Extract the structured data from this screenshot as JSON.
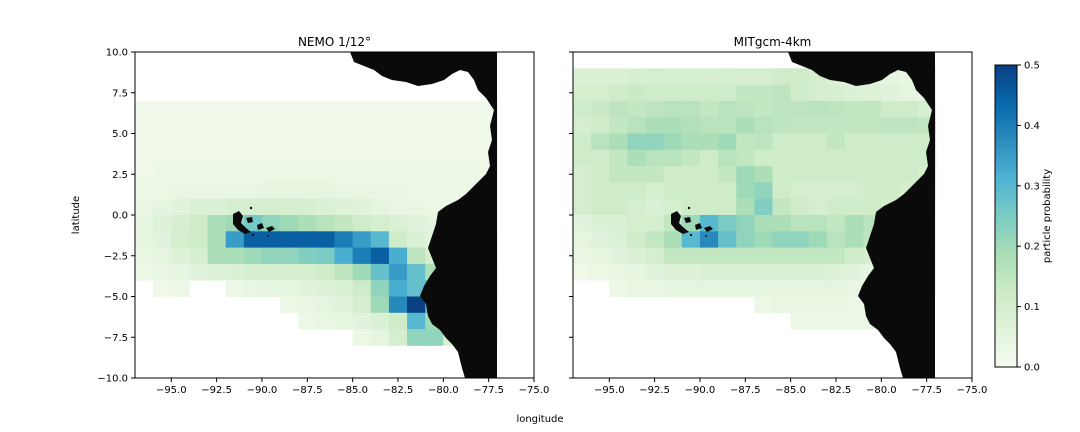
{
  "chart_data": [
    {
      "type": "heatmap",
      "title": "NEMO 1/12°",
      "xlabel": "longitude",
      "ylabel": "latitude",
      "xlim": [
        -97,
        -75
      ],
      "ylim": [
        -10,
        10
      ],
      "xticks": [
        "−95.0",
        "−92.5",
        "−90.0",
        "−87.5",
        "−85.0",
        "−82.5",
        "−80.0",
        "−77.5",
        "−75.0"
      ],
      "yticks": [
        "10.0",
        "7.5",
        "5.0",
        "2.5",
        "0.0",
        "−2.5",
        "−5.0",
        "−7.5",
        "−10.0"
      ],
      "grid_lon_start": -97,
      "grid_lat_start": 7,
      "cell_size": 1,
      "values": [
        [
          0.02,
          0.02,
          0.02,
          0.02,
          0.02,
          0.02,
          0.02,
          0.02,
          0.02,
          0.02,
          0.02,
          0.02,
          0.02,
          0.02,
          0.02,
          0.02,
          0.02,
          0.02,
          0.02,
          0.02
        ],
        [
          0.02,
          0.02,
          0.02,
          0.02,
          0.02,
          0.02,
          0.02,
          0.02,
          0.02,
          0.02,
          0.02,
          0.02,
          0.02,
          0.02,
          0.02,
          0.02,
          0.02,
          0.02,
          0.02,
          0.02
        ],
        [
          0.02,
          0.02,
          0.02,
          0.02,
          0.02,
          0.02,
          0.02,
          0.02,
          0.02,
          0.02,
          0.02,
          0.02,
          0.02,
          0.02,
          0.02,
          0.02,
          0.02,
          0.02,
          0.02,
          0.02
        ],
        [
          0.02,
          0.02,
          0.02,
          0.02,
          0.02,
          0.02,
          0.02,
          0.02,
          0.02,
          0.02,
          0.02,
          0.02,
          0.02,
          0.02,
          0.02,
          0.02,
          0.02,
          0.02,
          0.02,
          0.02
        ],
        [
          0.02,
          0.03,
          0.03,
          0.03,
          0.03,
          0.03,
          0.03,
          0.03,
          0.03,
          0.03,
          0.03,
          0.03,
          0.03,
          0.03,
          0.03,
          0.03,
          0.03,
          0.03,
          0.03,
          0.02
        ],
        [
          0.03,
          0.03,
          0.04,
          0.04,
          0.04,
          0.04,
          0.04,
          0.05,
          0.05,
          0.05,
          0.05,
          0.04,
          0.04,
          0.04,
          0.04,
          0.03,
          0.03,
          0.03,
          0.03,
          0.02
        ],
        [
          0.04,
          0.05,
          0.06,
          0.08,
          0.08,
          0.09,
          0.09,
          0.1,
          0.1,
          0.09,
          0.08,
          0.07,
          0.06,
          0.05,
          0.04,
          0.04,
          0.03,
          0.03,
          0.03,
          0.02
        ],
        [
          0.05,
          0.07,
          0.09,
          0.12,
          0.18,
          0.2,
          0.26,
          0.22,
          0.2,
          0.18,
          0.16,
          0.14,
          0.12,
          0.1,
          0.08,
          0.06,
          0.05,
          0.04,
          0.03,
          0.02
        ],
        [
          0.05,
          0.06,
          0.1,
          0.12,
          0.18,
          0.35,
          0.45,
          0.45,
          0.45,
          0.45,
          0.45,
          0.4,
          0.35,
          0.3,
          0.12,
          0.08,
          0.06,
          0.05,
          0.04,
          0.03
        ],
        [
          0.04,
          0.05,
          0.07,
          0.09,
          0.18,
          0.18,
          0.2,
          0.22,
          0.22,
          0.24,
          0.25,
          0.32,
          0.4,
          0.45,
          0.32,
          0.15,
          0.1,
          0.08,
          0.06,
          0.04
        ],
        [
          0.03,
          0.04,
          0.05,
          0.06,
          0.07,
          0.08,
          0.09,
          0.1,
          0.1,
          0.1,
          0.12,
          0.15,
          0.2,
          0.28,
          0.35,
          0.28,
          0.18,
          0.12,
          0.08,
          0.05
        ],
        [
          0.0,
          0.02,
          0.03,
          0.0,
          0.0,
          0.03,
          0.04,
          0.05,
          0.05,
          0.06,
          0.07,
          0.08,
          0.12,
          0.22,
          0.32,
          0.28,
          0.3,
          0.18,
          0.1,
          0.05
        ],
        [
          0.0,
          0.0,
          0.0,
          0.0,
          0.0,
          0.0,
          0.0,
          0.0,
          0.03,
          0.04,
          0.05,
          0.06,
          0.1,
          0.2,
          0.38,
          0.5,
          0.3,
          0.12,
          0.06,
          0.03
        ],
        [
          0.0,
          0.0,
          0.0,
          0.0,
          0.0,
          0.0,
          0.0,
          0.0,
          0.0,
          0.03,
          0.04,
          0.05,
          0.06,
          0.08,
          0.12,
          0.3,
          0.2,
          0.1,
          0.05,
          0.03
        ],
        [
          0.0,
          0.0,
          0.0,
          0.0,
          0.0,
          0.0,
          0.0,
          0.0,
          0.0,
          0.0,
          0.0,
          0.0,
          0.03,
          0.05,
          0.1,
          0.22,
          0.22,
          0.08,
          0.04,
          0.02
        ]
      ]
    },
    {
      "type": "heatmap",
      "title": "MITgcm-4km",
      "xlabel": "longitude",
      "ylabel": "latitude",
      "xlim": [
        -97,
        -75
      ],
      "ylim": [
        -10,
        10
      ],
      "xticks": [
        "−95.0",
        "−92.5",
        "−90.0",
        "−87.5",
        "−85.0",
        "−82.5",
        "−80.0",
        "−77.5",
        "−75.0"
      ],
      "yticks": [],
      "grid_lon_start": -97,
      "grid_lat_start": 9,
      "cell_size": 1,
      "values": [
        [
          0.08,
          0.08,
          0.08,
          0.09,
          0.1,
          0.09,
          0.09,
          0.09,
          0.1,
          0.1,
          0.1,
          0.12,
          0.12,
          0.1,
          0.08,
          0.07,
          0.06,
          0.05,
          0.04,
          0.03
        ],
        [
          0.1,
          0.1,
          0.12,
          0.13,
          0.12,
          0.12,
          0.12,
          0.12,
          0.12,
          0.14,
          0.14,
          0.15,
          0.12,
          0.1,
          0.09,
          0.08,
          0.07,
          0.06,
          0.05,
          0.04
        ],
        [
          0.12,
          0.13,
          0.15,
          0.14,
          0.15,
          0.16,
          0.16,
          0.14,
          0.16,
          0.15,
          0.14,
          0.15,
          0.15,
          0.16,
          0.15,
          0.14,
          0.14,
          0.12,
          0.12,
          0.1
        ],
        [
          0.1,
          0.12,
          0.14,
          0.16,
          0.18,
          0.18,
          0.17,
          0.16,
          0.16,
          0.18,
          0.16,
          0.15,
          0.14,
          0.14,
          0.14,
          0.14,
          0.14,
          0.15,
          0.15,
          0.14
        ],
        [
          0.12,
          0.16,
          0.18,
          0.22,
          0.22,
          0.2,
          0.18,
          0.18,
          0.2,
          0.14,
          0.15,
          0.12,
          0.12,
          0.12,
          0.14,
          0.12,
          0.12,
          0.12,
          0.12,
          0.12
        ],
        [
          0.12,
          0.12,
          0.14,
          0.18,
          0.16,
          0.16,
          0.14,
          0.12,
          0.16,
          0.14,
          0.12,
          0.12,
          0.12,
          0.12,
          0.12,
          0.12,
          0.12,
          0.12,
          0.12,
          0.12
        ],
        [
          0.1,
          0.12,
          0.14,
          0.14,
          0.14,
          0.12,
          0.12,
          0.12,
          0.14,
          0.2,
          0.18,
          0.12,
          0.12,
          0.12,
          0.12,
          0.12,
          0.12,
          0.12,
          0.12,
          0.1
        ],
        [
          0.1,
          0.12,
          0.12,
          0.12,
          0.1,
          0.12,
          0.12,
          0.12,
          0.12,
          0.2,
          0.22,
          0.12,
          0.1,
          0.1,
          0.1,
          0.1,
          0.12,
          0.12,
          0.1,
          0.08
        ],
        [
          0.1,
          0.12,
          0.12,
          0.1,
          0.08,
          0.1,
          0.12,
          0.12,
          0.12,
          0.18,
          0.24,
          0.14,
          0.12,
          0.1,
          0.12,
          0.12,
          0.12,
          0.1,
          0.08,
          0.06
        ],
        [
          0.06,
          0.08,
          0.08,
          0.1,
          0.1,
          0.14,
          0.2,
          0.3,
          0.25,
          0.22,
          0.18,
          0.18,
          0.16,
          0.16,
          0.14,
          0.18,
          0.16,
          0.1,
          0.06,
          0.04
        ],
        [
          0.05,
          0.06,
          0.08,
          0.12,
          0.14,
          0.18,
          0.3,
          0.38,
          0.28,
          0.22,
          0.2,
          0.22,
          0.22,
          0.2,
          0.16,
          0.18,
          0.15,
          0.1,
          0.06,
          0.04
        ],
        [
          0.04,
          0.05,
          0.06,
          0.08,
          0.1,
          0.14,
          0.14,
          0.14,
          0.14,
          0.14,
          0.14,
          0.14,
          0.14,
          0.14,
          0.14,
          0.12,
          0.1,
          0.08,
          0.05,
          0.03
        ],
        [
          0.02,
          0.03,
          0.04,
          0.05,
          0.06,
          0.07,
          0.07,
          0.08,
          0.08,
          0.08,
          0.08,
          0.08,
          0.08,
          0.08,
          0.07,
          0.06,
          0.05,
          0.04,
          0.03,
          0.02
        ],
        [
          0.0,
          0.0,
          0.03,
          0.04,
          0.04,
          0.05,
          0.05,
          0.05,
          0.05,
          0.05,
          0.05,
          0.05,
          0.05,
          0.05,
          0.05,
          0.04,
          0.04,
          0.03,
          0.02,
          0.02
        ],
        [
          0.0,
          0.0,
          0.0,
          0.0,
          0.0,
          0.0,
          0.0,
          0.0,
          0.0,
          0.0,
          0.03,
          0.04,
          0.04,
          0.04,
          0.04,
          0.03,
          0.03,
          0.02,
          0.02,
          0.0
        ],
        [
          0.0,
          0.0,
          0.0,
          0.0,
          0.0,
          0.0,
          0.0,
          0.0,
          0.0,
          0.0,
          0.0,
          0.0,
          0.03,
          0.03,
          0.03,
          0.03,
          0.03,
          0.02,
          0.0,
          0.0
        ]
      ]
    }
  ],
  "shared": {
    "xlabel": "longitude",
    "ylabel": "latitude"
  },
  "colorbar": {
    "label": "particle probability",
    "min": 0.0,
    "max": 0.5,
    "ticks": [
      "0.0",
      "0.1",
      "0.2",
      "0.3",
      "0.4",
      "0.5"
    ],
    "colormap": "GnBu",
    "stops": [
      "#f7fcf0",
      "#e0f3db",
      "#ccebc5",
      "#a8ddb5",
      "#7bccc4",
      "#4eb3d3",
      "#2b8cbe",
      "#0868ac",
      "#084081"
    ]
  },
  "colors": {
    "land": "#0a0a0a"
  }
}
